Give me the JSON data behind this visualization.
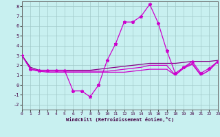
{
  "xlabel": "Windchill (Refroidissement éolien,°C)",
  "xlim": [
    0,
    23
  ],
  "ylim": [
    -2.5,
    8.5
  ],
  "xticks": [
    0,
    1,
    2,
    3,
    4,
    5,
    6,
    7,
    8,
    9,
    10,
    11,
    12,
    13,
    14,
    15,
    16,
    17,
    18,
    19,
    20,
    21,
    22,
    23
  ],
  "yticks": [
    -2,
    -1,
    0,
    1,
    2,
    3,
    4,
    5,
    6,
    7,
    8
  ],
  "background_color": "#c8f0f0",
  "grid_color": "#a0c8c8",
  "line_color": "#cc00cc",
  "line_color2": "#880088",
  "series1_x": [
    0,
    1,
    2,
    3,
    4,
    5,
    6,
    7,
    8,
    9,
    10,
    11,
    12,
    13,
    14,
    15,
    16,
    17,
    18,
    19,
    20,
    21,
    22,
    23
  ],
  "series1_y": [
    3.0,
    1.6,
    1.5,
    1.5,
    1.5,
    1.5,
    -0.6,
    -0.6,
    -1.2,
    0.0,
    2.5,
    4.2,
    6.4,
    6.4,
    7.0,
    8.2,
    6.3,
    3.5,
    1.2,
    1.8,
    2.4,
    1.2,
    1.7,
    2.4
  ],
  "series2_x": [
    0,
    1,
    2,
    3,
    4,
    5,
    6,
    7,
    8,
    9,
    10,
    11,
    12,
    13,
    14,
    15,
    16,
    17,
    18,
    19,
    20,
    21,
    22,
    23
  ],
  "series2_y": [
    3.0,
    1.8,
    1.5,
    1.5,
    1.5,
    1.5,
    1.5,
    1.5,
    1.5,
    1.6,
    1.7,
    1.8,
    1.9,
    2.0,
    2.1,
    2.2,
    2.2,
    2.2,
    2.2,
    2.3,
    2.4,
    2.4,
    2.4,
    2.5
  ],
  "series3_x": [
    0,
    1,
    2,
    3,
    4,
    5,
    6,
    7,
    8,
    9,
    10,
    11,
    12,
    13,
    14,
    15,
    16,
    17,
    18,
    19,
    20,
    21,
    22,
    23
  ],
  "series3_y": [
    3.0,
    1.6,
    1.4,
    1.4,
    1.4,
    1.4,
    1.4,
    1.4,
    1.4,
    1.4,
    1.4,
    1.5,
    1.6,
    1.7,
    1.8,
    2.0,
    2.0,
    2.0,
    1.0,
    1.8,
    2.2,
    1.0,
    1.5,
    2.4
  ],
  "series4_x": [
    0,
    1,
    2,
    3,
    4,
    5,
    6,
    7,
    8,
    9,
    10,
    11,
    12,
    13,
    14,
    15,
    16,
    17,
    18,
    19,
    20,
    21,
    22,
    23
  ],
  "series4_y": [
    3.0,
    1.6,
    1.4,
    1.3,
    1.3,
    1.3,
    1.3,
    1.3,
    1.3,
    1.3,
    1.3,
    1.3,
    1.3,
    1.4,
    1.5,
    1.6,
    1.6,
    1.6,
    1.0,
    1.7,
    2.1,
    1.0,
    1.5,
    2.4
  ]
}
